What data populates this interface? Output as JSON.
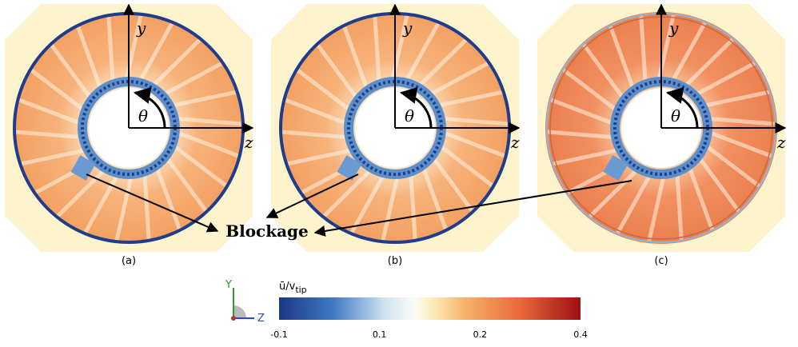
{
  "panels": [
    {
      "label": "(a)",
      "y_axis": "y",
      "z_axis": "z",
      "angle": "θ"
    },
    {
      "label": "(b)",
      "y_axis": "y",
      "z_axis": "z",
      "angle": "θ"
    },
    {
      "label": "(c)",
      "y_axis": "y",
      "z_axis": "z",
      "angle": "θ"
    }
  ],
  "annotation": "Blockage",
  "colorbar": {
    "title": "ū/v",
    "title_sub": "tip",
    "ticks": [
      "-0.1",
      "0.1",
      "0.2",
      "0.4"
    ]
  },
  "triad": {
    "y": "Y",
    "z": "Z"
  }
}
